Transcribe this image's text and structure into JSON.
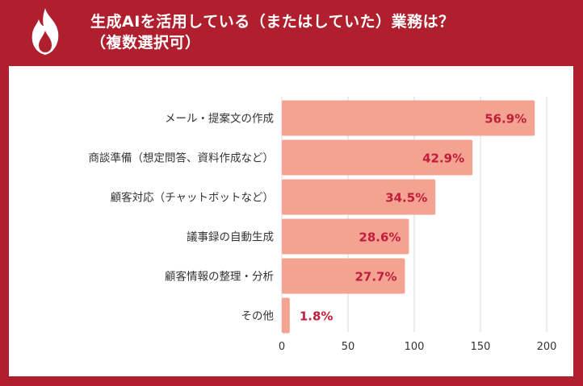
{
  "header": {
    "title_line1": "生成AIを活用している（またはしていた）業務は？",
    "title_line2": "（複数選択可）"
  },
  "colors": {
    "background": "#b01f2d",
    "bar": "#f4a393",
    "value_label": "#c01e3a",
    "grid": "#d9d9d9"
  },
  "icons": {
    "logo": "flame-icon"
  },
  "chart_data": {
    "type": "bar",
    "orientation": "horizontal",
    "title": "生成AIを活用している（またはしていた）業務は？（複数選択可）",
    "categories": [
      "メール・提案文の作成",
      "商談準備（想定問答、資料作成など）",
      "顧客対応（チャットボットなど）",
      "議事録の自動生成",
      "顧客情報の整理・分析",
      "その他"
    ],
    "values": [
      191,
      144,
      116,
      96,
      93,
      6
    ],
    "data_labels": [
      "56.9%",
      "42.9%",
      "34.5%",
      "28.6%",
      "27.7%",
      "1.8%"
    ],
    "xlim": [
      0,
      200
    ],
    "xticks": [
      0,
      50,
      100,
      150,
      200
    ],
    "grid": true,
    "legend": "none"
  }
}
